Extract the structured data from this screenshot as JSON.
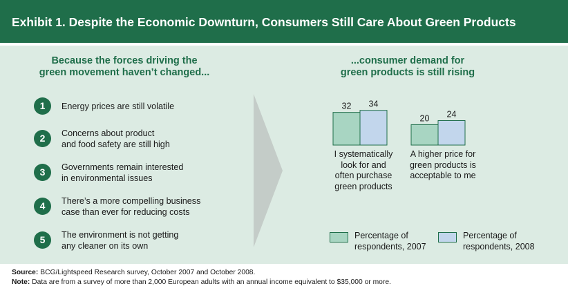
{
  "header": {
    "title": "Exhibit 1. Despite the Economic Downturn, Consumers Still Care About Green Products"
  },
  "left": {
    "heading_lines": [
      "Because the forces driving the",
      "green movement haven’t changed..."
    ],
    "items": [
      {
        "number": "1",
        "lines": [
          "Energy prices are still volatile"
        ]
      },
      {
        "number": "2",
        "lines": [
          "Concerns about product",
          "and food safety are still high"
        ]
      },
      {
        "number": "3",
        "lines": [
          "Governments remain interested",
          "in environmental issues"
        ]
      },
      {
        "number": "4",
        "lines": [
          "There’s a more compelling business",
          "case than ever for reducing costs"
        ]
      },
      {
        "number": "5",
        "lines": [
          "The environment is not getting",
          "any cleaner on its own"
        ]
      }
    ]
  },
  "right": {
    "heading_lines": [
      "...consumer demand for",
      "green products is still rising"
    ]
  },
  "chart_data": {
    "type": "bar",
    "title": "",
    "xlabel": "",
    "ylabel": "",
    "categories": [
      [
        "I systematically",
        "look for and",
        "often purchase",
        "green products"
      ],
      [
        "A higher price for",
        "green products is",
        "acceptable to me"
      ]
    ],
    "series": [
      {
        "name": "Percentage of respondents, 2007",
        "legend_lines": [
          "Percentage of",
          "respondents, 2007"
        ],
        "values": [
          32,
          20
        ],
        "color": "#a8d5c2"
      },
      {
        "name": "Percentage of respondents, 2008",
        "legend_lines": [
          "Percentage of",
          "respondents, 2008"
        ],
        "values": [
          34,
          24
        ],
        "color": "#c2d6ec"
      }
    ],
    "data_labels": true,
    "grid": false,
    "legend": "bottom"
  },
  "colors": {
    "brand_green": "#1f6e4a",
    "panel_bg": "#dcebe3",
    "arrow": "#c4ccc8"
  },
  "footer": {
    "source_label": "Source:",
    "source_text": " BCG/Lightspeed Research survey, October 2007 and October 2008.",
    "note_label": "Note:",
    "note_text": " Data are from a survey of more than 2,000 European adults with an annual income equivalent to $35,000 or more."
  }
}
